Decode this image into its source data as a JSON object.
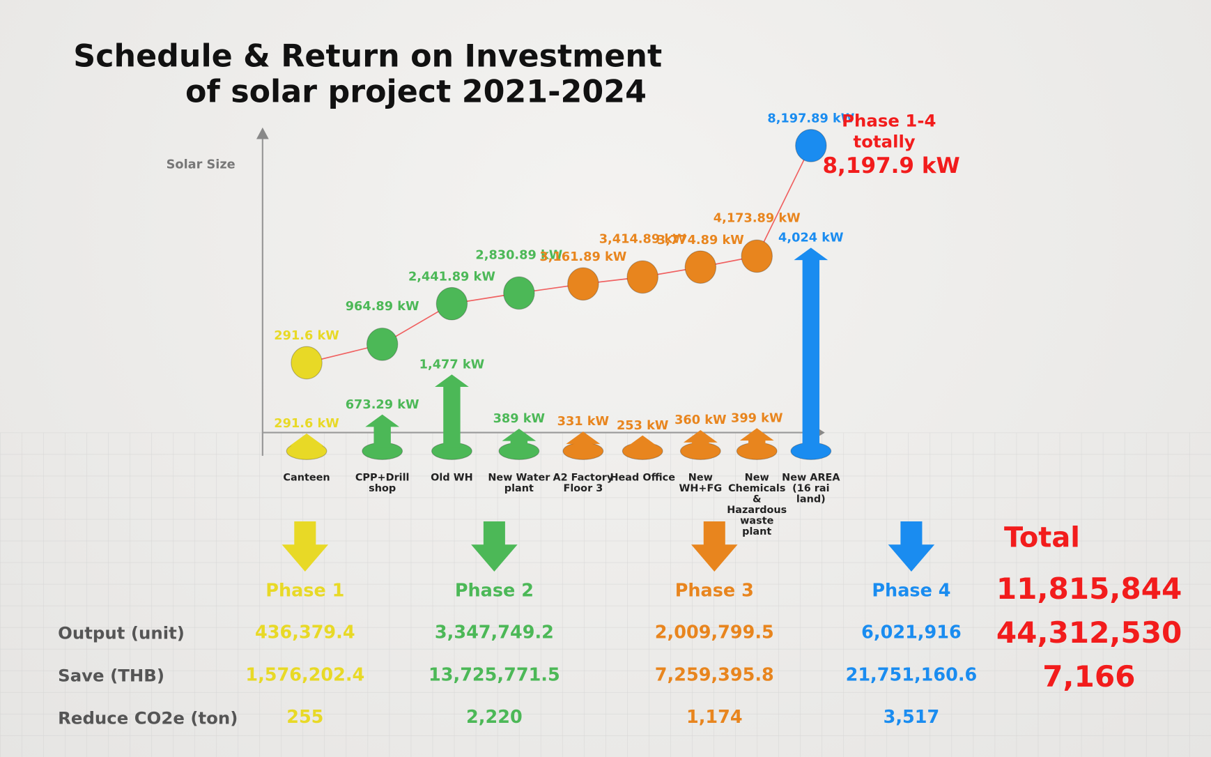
{
  "title": [
    "Schedule & Return on Investment",
    "of solar project 2021-2024"
  ],
  "chart_data": {
    "type": "bar",
    "y_label": "Solar Size",
    "categories": [
      "Canteen",
      "CPP+Drill shop",
      "Old WH",
      "New Water plant",
      "A2 Factory Floor 3",
      "Head Office",
      "New WH+FG",
      "New Chemicals & Hazardous waste plant",
      "New AREA (16 rai land)"
    ],
    "values": [
      291.6,
      673.29,
      1477,
      389,
      331,
      253,
      360,
      399,
      4024
    ],
    "value_labels": [
      "291.6 kW",
      "673.29 kW",
      "1,477 kW",
      "389 kW",
      "331 kW",
      "253 kW",
      "360 kW",
      "399 kW",
      "4,024 kW"
    ],
    "colors": [
      "#e8d926",
      "#4cb857",
      "#4cb857",
      "#4cb857",
      "#e8851e",
      "#e8851e",
      "#e8851e",
      "#e8851e",
      "#1a8cf0"
    ],
    "ylim": [
      0,
      4500
    ],
    "cumulative": [
      291.6,
      964.89,
      2441.89,
      2830.89,
      3161.89,
      3414.89,
      3774.89,
      4173.89,
      8197.89
    ],
    "cumulative_labels": [
      "291.6 kW",
      "964.89 kW",
      "2,441.89 kW",
      "2,830.89 kW",
      "3,161.89 kW",
      "3,414.89 kW",
      "3,774.89 kW",
      "4,173.89 kW",
      "8,197.89 kW"
    ],
    "y2lim": [
      0,
      9000
    ],
    "line_color": "#f06060",
    "total_label": [
      "Phase 1-4",
      "totally",
      "8,197.9 kW"
    ]
  },
  "summary": {
    "row_labels": [
      "Output  (unit)",
      "Save (THB)",
      "Reduce CO2e (ton)"
    ],
    "phases": [
      {
        "name": "Phase 1",
        "color": "#e8d926",
        "output": "436,379.4",
        "save": "1,576,202.4",
        "co2": "255"
      },
      {
        "name": "Phase 2",
        "color": "#4cb857",
        "output": "3,347,749.2",
        "save": "13,725,771.5",
        "co2": "2,220"
      },
      {
        "name": "Phase 3",
        "color": "#e8851e",
        "output": "2,009,799.5",
        "save": "7,259,395.8",
        "co2": "1,174"
      },
      {
        "name": "Phase 4",
        "color": "#1a8cf0",
        "output": "6,021,916",
        "save": "21,751,160.6",
        "co2": "3,517"
      }
    ],
    "total": {
      "name": "Total",
      "color": "#f21c1c",
      "output": "11,815,844",
      "save": "44,312,530",
      "co2": "7,166"
    }
  }
}
